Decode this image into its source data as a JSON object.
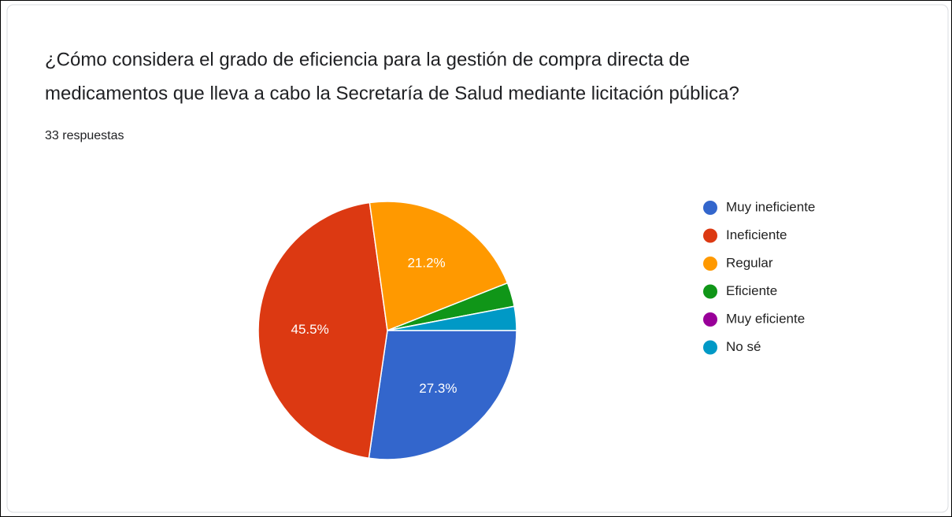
{
  "chart_data": {
    "type": "pie",
    "title": "¿Cómo considera el grado de eficiencia para la gestión de compra directa de medicamentos que lleva a cabo la Secretaría de Salud mediante licitación pública?",
    "title_lines": [
      "¿Cómo considera el grado de eficiencia para la gestión de compra directa de",
      "medicamentos que lleva a cabo la Secretaría de Salud mediante licitación pública?"
    ],
    "subtitle": "33 respuestas",
    "categories": [
      "Muy ineficiente",
      "Ineficiente",
      "Regular",
      "Eficiente",
      "Muy eficiente",
      "No sé"
    ],
    "values": [
      27.3,
      45.5,
      21.2,
      3,
      0,
      3
    ],
    "value_labels": [
      "27.3%",
      "45.5%",
      "21.2%",
      null,
      null,
      null
    ],
    "colors": [
      "#3366cc",
      "#dc3912",
      "#ff9900",
      "#109618",
      "#990099",
      "#0099c6"
    ],
    "legend": "right"
  }
}
